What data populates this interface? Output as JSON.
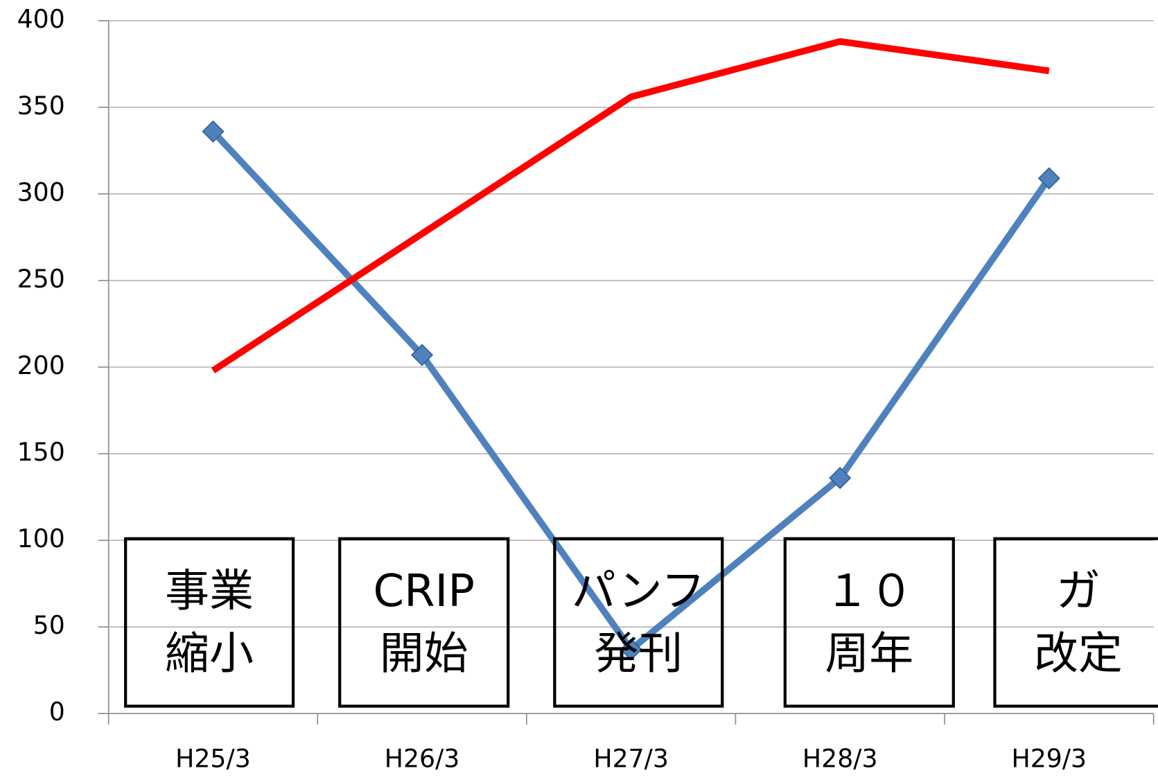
{
  "chart_data": {
    "type": "line",
    "categories": [
      "H25/3",
      "H26/3",
      "H27/3",
      "H28/3",
      "H29/3"
    ],
    "series": [
      {
        "color": "#4f81bd",
        "marker": "diamond",
        "values": [
          336,
          207,
          37,
          136,
          309
        ]
      },
      {
        "color": "#ff0000",
        "values": [
          198,
          277,
          356,
          388,
          371
        ]
      }
    ],
    "ylim": [
      0,
      400
    ],
    "yticks": [
      0,
      50,
      100,
      150,
      200,
      250,
      300,
      350,
      400
    ],
    "grid": true,
    "annotations": [
      {
        "lines": [
          "事業",
          "縮小"
        ]
      },
      {
        "lines": [
          "CRIP",
          "開始"
        ]
      },
      {
        "lines": [
          "パンフ",
          "発刊"
        ]
      },
      {
        "lines": [
          "１０",
          "周年"
        ]
      },
      {
        "lines": [
          "ガ",
          "改定"
        ]
      }
    ]
  }
}
